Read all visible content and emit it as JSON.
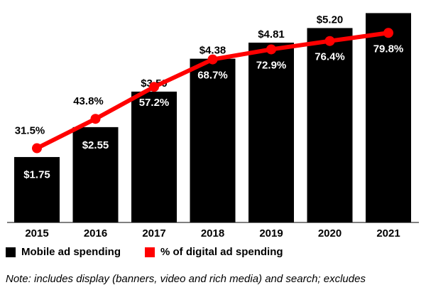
{
  "chart_data": {
    "type": "bar",
    "categories": [
      "2015",
      "2016",
      "2017",
      "2018",
      "2019",
      "2020",
      "2021"
    ],
    "series": [
      {
        "name": "Mobile ad spending",
        "type": "bar",
        "values": [
          1.75,
          2.55,
          3.5,
          4.38,
          4.81,
          5.2,
          5.6
        ],
        "labels": [
          "$1.75",
          "$2.55",
          "$3.50",
          "$4.38",
          "$4.81",
          "$5.20",
          ""
        ],
        "color": "#000000"
      },
      {
        "name": "% of digital ad spending",
        "type": "line",
        "values": [
          31.5,
          43.8,
          57.2,
          68.7,
          72.9,
          76.4,
          79.8
        ],
        "labels": [
          "31.5%",
          "43.8%",
          "57.2%",
          "68.7%",
          "72.9%",
          "76.4%",
          "79.8%"
        ],
        "color": "#ff0000"
      }
    ],
    "title": "",
    "xlabel": "",
    "ylabel": "",
    "grid": false,
    "legend_position": "bottom-left"
  },
  "legend": {
    "bar_label": "Mobile ad spending",
    "line_label": "% of digital ad spending"
  },
  "note": "Note: includes display (banners, video and rich media) and search; excludes"
}
